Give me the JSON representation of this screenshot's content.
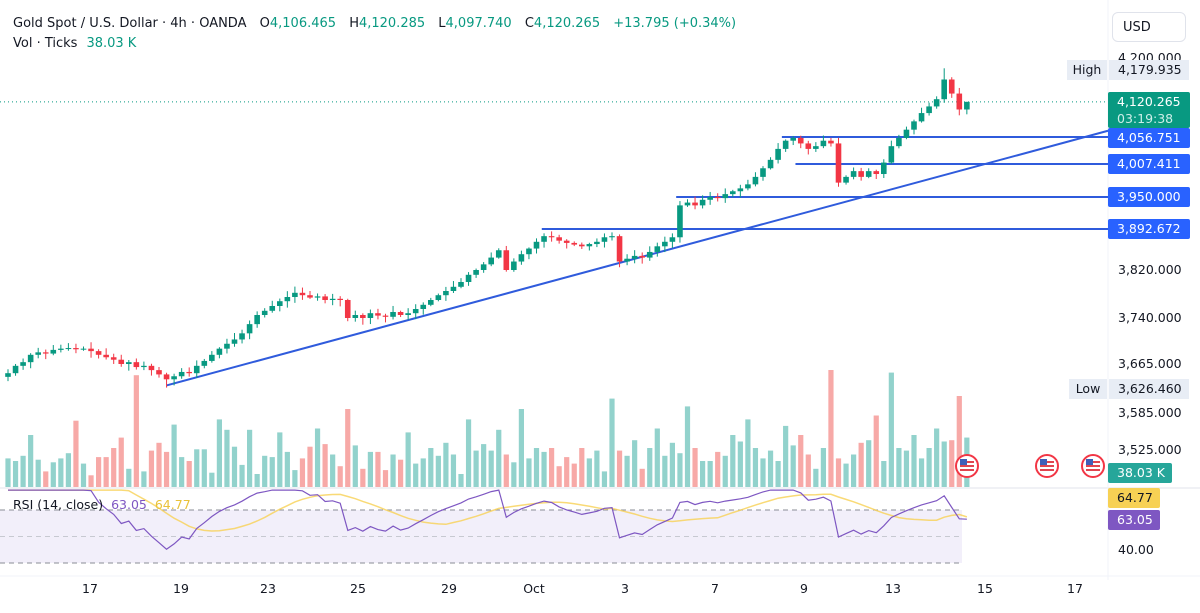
{
  "header": {
    "symbol": "Gold Spot / U.S. Dollar · 4h · OANDA",
    "open_label": "O",
    "open": "4,106.465",
    "high_label": "H",
    "high": "4,120.285",
    "low_label": "L",
    "low": "4,097.740",
    "close_label": "C",
    "close": "4,120.265",
    "change": "+13.795 (+0.34%)",
    "vol_label": "Vol · Ticks",
    "vol_value": "38.03 K"
  },
  "price_axis": {
    "currency": "USD",
    "ticks": [
      "4,200.000",
      "3,820.000",
      "3,740.000",
      "3,665.000",
      "3,585.000",
      "3,525.000"
    ],
    "high_label": "High",
    "high_value": "4,179.935",
    "low_label": "Low",
    "low_value": "3,626.460",
    "last_price": "4,120.265",
    "countdown": "03:19:38",
    "levels": [
      "4,056.751",
      "4,007.411",
      "3,950.000",
      "3,892.672"
    ],
    "volume_badge": "38.03 K"
  },
  "rsi": {
    "label": "RSI (14, close)",
    "value": "63.05",
    "ma_value": "64.77",
    "tick": "40.00"
  },
  "time_axis": [
    "17",
    "19",
    "23",
    "25",
    "29",
    "Oct",
    "3",
    "7",
    "9",
    "13",
    "15",
    "17"
  ],
  "colors": {
    "up": "#089981",
    "down": "#f23645",
    "line": "#2f5bdc",
    "badge": "#2962ff",
    "rsi": "#7e57c2",
    "rsi_ma": "#f7d154",
    "vol_up": "#92d2cc",
    "vol_down": "#f7a9a7"
  },
  "chart_data": {
    "type": "candlestick",
    "title": "Gold Spot / U.S. Dollar · 4h · OANDA",
    "timeframe": "4h",
    "ylim": [
      3500,
      4210
    ],
    "last_candle": {
      "open": 4106.465,
      "high": 4120.285,
      "low": 4097.74,
      "close": 4120.265
    },
    "period_high": 4179.935,
    "period_low": 3626.46,
    "closes": [
      3650,
      3662,
      3668,
      3680,
      3684,
      3682,
      3688,
      3690,
      3691,
      3689,
      3690,
      3686,
      3680,
      3676,
      3672,
      3665,
      3668,
      3660,
      3662,
      3655,
      3648,
      3640,
      3645,
      3652,
      3650,
      3662,
      3670,
      3680,
      3690,
      3698,
      3705,
      3715,
      3730,
      3745,
      3752,
      3760,
      3768,
      3775,
      3782,
      3778,
      3774,
      3776,
      3770,
      3772,
      3770,
      3740,
      3745,
      3740,
      3748,
      3744,
      3742,
      3750,
      3745,
      3748,
      3755,
      3762,
      3770,
      3778,
      3785,
      3792,
      3800,
      3812,
      3820,
      3830,
      3842,
      3855,
      3820,
      3835,
      3848,
      3858,
      3870,
      3880,
      3878,
      3872,
      3868,
      3865,
      3862,
      3866,
      3870,
      3878,
      3880,
      3835,
      3840,
      3845,
      3842,
      3852,
      3862,
      3870,
      3878,
      3935,
      3940,
      3935,
      3945,
      3950,
      3948,
      3955,
      3960,
      3965,
      3972,
      3985,
      4000,
      4015,
      4035,
      4050,
      4055,
      4045,
      4035,
      4040,
      4050,
      4045,
      3975,
      3985,
      3995,
      3985,
      3995,
      3990,
      4010,
      4040,
      4055,
      4070,
      4085,
      4100,
      4112,
      4125,
      4160,
      4135,
      4106.465,
      4120.265
    ],
    "volumes_k": [
      22,
      20,
      24,
      40,
      21,
      12,
      19,
      22,
      26,
      51,
      18,
      9,
      23,
      23,
      30,
      38,
      14,
      86,
      12,
      28,
      34,
      27,
      48,
      23,
      20,
      29,
      29,
      11,
      52,
      44,
      31,
      17,
      44,
      10,
      24,
      23,
      42,
      27,
      13,
      22,
      31,
      45,
      33,
      25,
      16,
      60,
      32,
      14,
      27,
      27,
      13,
      25,
      21,
      42,
      18,
      22,
      30,
      24,
      34,
      25,
      10,
      52,
      28,
      33,
      28,
      44,
      25,
      19,
      60,
      22,
      30,
      27,
      30,
      16,
      23,
      18,
      30,
      22,
      28,
      12,
      68,
      28,
      24,
      36,
      14,
      30,
      45,
      24,
      34,
      26,
      62,
      30,
      20,
      20,
      27,
      24,
      40,
      35,
      52,
      30,
      22,
      28,
      20,
      47,
      32,
      40,
      25,
      14,
      30,
      90,
      22,
      18,
      25,
      34,
      36,
      55,
      20,
      88,
      30,
      28,
      40,
      22,
      30,
      45,
      35,
      36,
      70,
      38.03
    ],
    "horizontal_levels": [
      4056.751,
      4007.411,
      3950.0,
      3892.672
    ],
    "trendline": {
      "from": {
        "bar": 21,
        "price": 3630
      },
      "to": {
        "bar": 146,
        "price": 4068
      }
    },
    "rsi": {
      "period": 14,
      "value": 63.05,
      "ma": 64.77,
      "bands": [
        70,
        50,
        30
      ]
    },
    "x_tick_labels": [
      "17",
      "19",
      "23",
      "25",
      "29",
      "Oct",
      "3",
      "7",
      "9",
      "13",
      "15",
      "17"
    ]
  }
}
